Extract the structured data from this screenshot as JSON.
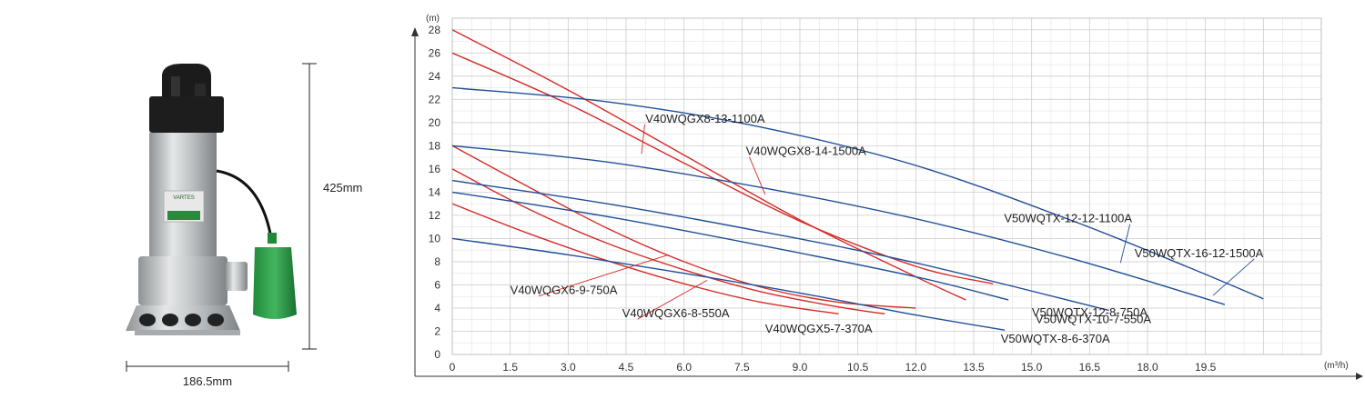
{
  "product": {
    "brand_text": "VARTES",
    "height_label": "425mm",
    "width_label": "186.5mm"
  },
  "chart_data": {
    "type": "line",
    "title": "",
    "ylabel_unit": "(m)",
    "xlabel_unit": "(m³/h)",
    "xlim": [
      0,
      22.5
    ],
    "ylim": [
      0,
      29
    ],
    "x_ticks": [
      "0",
      "1.5",
      "3.0",
      "4.5",
      "6.0",
      "7.5",
      "9.0",
      "10.5",
      "12.0",
      "13.5",
      "15.0",
      "16.5",
      "18.0",
      "19.5"
    ],
    "y_ticks": [
      "0",
      "2",
      "4",
      "6",
      "8",
      "10",
      "12",
      "14",
      "16",
      "18",
      "20",
      "22",
      "24",
      "26",
      "28"
    ],
    "grid": true,
    "colors": {
      "red": "#d42c27",
      "blue": "#1f4f97",
      "grid": "#cfcfcf",
      "axis": "#333333"
    },
    "series": [
      {
        "name": "V40WQGX8-13-1100A",
        "color": "#d42c27",
        "label_at": [
          5.0,
          20.0
        ],
        "leader_end": [
          4.9,
          17.3
        ],
        "x": [
          0,
          3,
          6,
          9,
          12,
          14.0
        ],
        "y": [
          26,
          21.6,
          16.5,
          11.5,
          7.6,
          6.1
        ]
      },
      {
        "name": "V40WQGX8-14-1500A",
        "color": "#d42c27",
        "label_at": [
          7.6,
          17.2
        ],
        "leader_end": [
          8.1,
          13.8
        ],
        "x": [
          0,
          3,
          6,
          9,
          12,
          13.3
        ],
        "y": [
          28,
          22.8,
          17.2,
          11.6,
          6.7,
          4.7
        ]
      },
      {
        "name": "V40WQGX6-9-750A",
        "color": "#d42c27",
        "label_at": [
          1.5,
          5.2
        ],
        "leader_end": [
          5.6,
          8.6
        ],
        "x": [
          0,
          2,
          4,
          6,
          8,
          10,
          12.0
        ],
        "y": [
          18,
          14.4,
          10.9,
          8.0,
          5.8,
          4.5,
          4.0
        ]
      },
      {
        "name": "V40WQGX6-8-550A",
        "color": "#d42c27",
        "label_at": [
          4.4,
          3.2
        ],
        "leader_end": [
          6.6,
          6.4
        ],
        "x": [
          0,
          2,
          4,
          6,
          8,
          10,
          11.2
        ],
        "y": [
          16,
          12.5,
          9.6,
          7.3,
          5.4,
          4.1,
          3.5
        ]
      },
      {
        "name": "V40WQGX5-7-370A",
        "color": "#d42c27",
        "label_at": [
          8.1,
          1.9
        ],
        "x": [
          0,
          2,
          4,
          6,
          8,
          10.0
        ],
        "y": [
          13,
          10.4,
          8.1,
          6.1,
          4.5,
          3.5
        ]
      },
      {
        "name": "V50WQTX-12-12-1100A",
        "color": "#1f4f97",
        "label_at": [
          17.6,
          11.4
        ],
        "leader_end": [
          17.3,
          7.9
        ],
        "x": [
          0,
          4,
          8,
          12,
          16,
          20.0
        ],
        "y": [
          18,
          16.6,
          14.4,
          11.7,
          8.3,
          4.3
        ]
      },
      {
        "name": "V50WQTX-16-12-1500A",
        "color": "#1f4f97",
        "label_at": [
          21.0,
          8.4
        ],
        "leader_end": [
          19.7,
          5.1
        ],
        "x": [
          0,
          4,
          8,
          12,
          16,
          19,
          21.0
        ],
        "y": [
          23,
          21.8,
          19.6,
          16.3,
          11.6,
          7.6,
          4.8
        ]
      },
      {
        "name": "V50WQTX-10-7-550A",
        "color": "#1f4f97",
        "label_at": [
          15.1,
          2.7
        ],
        "x": [
          0,
          4,
          8,
          12,
          14.4
        ],
        "y": [
          14.0,
          11.9,
          9.4,
          6.7,
          4.7
        ]
      },
      {
        "name": "V50WQTX-12-8-750A",
        "color": "#1f4f97",
        "label_at": [
          18.0,
          3.3
        ],
        "x": [
          0,
          4,
          8,
          12,
          17.0
        ],
        "y": [
          15.0,
          13.0,
          10.6,
          7.9,
          3.8
        ]
      },
      {
        "name": "V50WQTX-8-6-370A",
        "color": "#1f4f97",
        "label_at": [
          14.2,
          1.0
        ],
        "x": [
          0,
          3,
          6,
          9,
          12,
          14.3
        ],
        "y": [
          10.0,
          8.6,
          7.0,
          5.3,
          3.4,
          2.1
        ]
      }
    ]
  }
}
